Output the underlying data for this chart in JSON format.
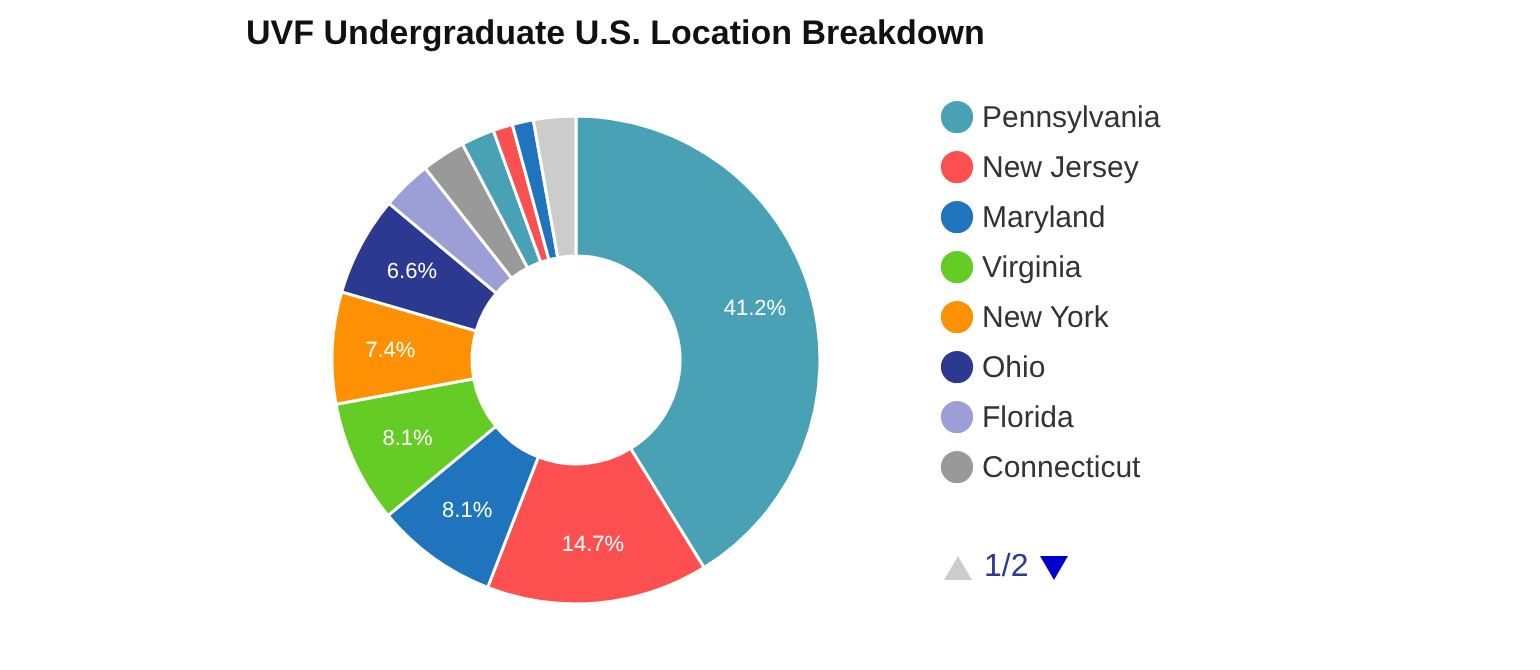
{
  "chart_data": {
    "type": "donut",
    "title": "UVF Undergraduate U.S. Location Breakdown",
    "categories": [
      "Pennsylvania",
      "New Jersey",
      "Maryland",
      "Virginia",
      "New York",
      "Ohio",
      "Florida",
      "Connecticut",
      null,
      null,
      null,
      null
    ],
    "values": [
      41.2,
      14.7,
      8.1,
      8.1,
      7.4,
      6.6,
      3.3,
      2.9,
      2.2,
      1.3,
      1.4,
      2.8
    ],
    "colors": [
      "#48a1b5",
      "#fc5050",
      "#1f74bd",
      "#65cc25",
      "#fd9103",
      "#2b3990",
      "#9b9fd5",
      "#999999",
      "#48a1b5",
      "#fc5050",
      "#1f74bd",
      "#cccccc"
    ],
    "value_labels": [
      "41.2%",
      "14.7%",
      "8.1%",
      "8.1%",
      "7.4%",
      "6.6%",
      null,
      null,
      null,
      null,
      null,
      null
    ],
    "legend": "right",
    "annotations": [
      "1/2"
    ]
  }
}
